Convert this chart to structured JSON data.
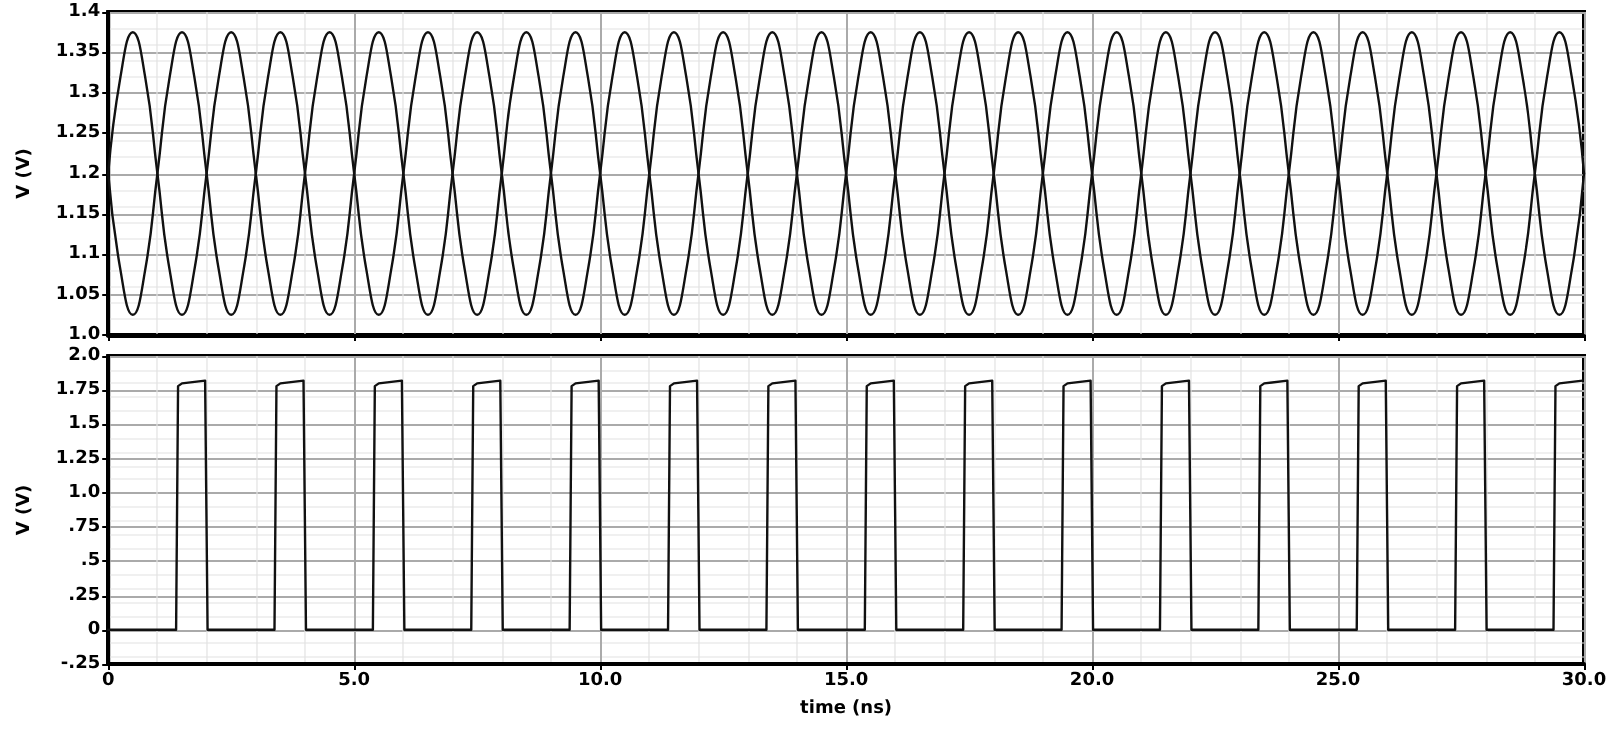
{
  "chart_data": [
    {
      "type": "line",
      "ylabel": "V (V)",
      "tick_labels": "y",
      "grid": true,
      "marker": "none",
      "line_style": "solid",
      "xlim": [
        0,
        30
      ],
      "xticks": [
        0,
        5,
        10,
        15,
        20,
        25,
        30
      ],
      "ylim": [
        1.0,
        1.4
      ],
      "yticks": [
        {
          "value": 1.0,
          "label": "1.0"
        },
        1.05,
        1.1,
        1.15,
        1.2,
        1.25,
        1.3,
        1.35,
        1.4
      ],
      "x": [
        0,
        0.25,
        0.5,
        0.75,
        1,
        1.25,
        1.5,
        1.75,
        2,
        2.25,
        2.5,
        2.75,
        3,
        3.25,
        3.5,
        3.75,
        4,
        4.25,
        4.5,
        4.75,
        5,
        5.25,
        5.5,
        5.75,
        6,
        6.25,
        6.5,
        6.75,
        7,
        7.25,
        7.5,
        7.75,
        8,
        8.25,
        8.5,
        8.75,
        9,
        9.25,
        9.5,
        9.75,
        10,
        10.25,
        10.5,
        10.75,
        11,
        11.25,
        11.5,
        11.75,
        12,
        12.25,
        12.5,
        12.75,
        13,
        13.25,
        13.5,
        13.75,
        14,
        14.25,
        14.5,
        14.75,
        15,
        15.25,
        15.5,
        15.75,
        16,
        16.25,
        16.5,
        16.75,
        17,
        17.25,
        17.5,
        17.75,
        18,
        18.25,
        18.5,
        18.75,
        19,
        19.25,
        19.5,
        19.75,
        20,
        20.25,
        20.5,
        20.75,
        21,
        21.25,
        21.5,
        21.75,
        22,
        22.25,
        22.5,
        22.75,
        23,
        23.25,
        23.5,
        23.75,
        24,
        24.25,
        24.5,
        24.75,
        25,
        25.25,
        25.5,
        25.75,
        26,
        26.25,
        26.5,
        26.75,
        27,
        27.25,
        27.5,
        27.75,
        28,
        28.25,
        28.5,
        28.75,
        29,
        29.25,
        29.5,
        29.75,
        30
      ],
      "series": [
        {
          "color": "#111111",
          "values": [
            1.2,
            1.32,
            1.375,
            1.32,
            1.2,
            1.08,
            1.025,
            1.08,
            1.2,
            1.32,
            1.375,
            1.32,
            1.2,
            1.08,
            1.025,
            1.08,
            1.2,
            1.32,
            1.375,
            1.32,
            1.2,
            1.08,
            1.025,
            1.08,
            1.2,
            1.32,
            1.375,
            1.32,
            1.2,
            1.08,
            1.025,
            1.08,
            1.2,
            1.32,
            1.375,
            1.32,
            1.2,
            1.08,
            1.025,
            1.08,
            1.2,
            1.32,
            1.375,
            1.32,
            1.2,
            1.08,
            1.025,
            1.08,
            1.2,
            1.32,
            1.375,
            1.32,
            1.2,
            1.08,
            1.025,
            1.08,
            1.2,
            1.32,
            1.375,
            1.32,
            1.2,
            1.08,
            1.025,
            1.08,
            1.2,
            1.32,
            1.375,
            1.32,
            1.2,
            1.08,
            1.025,
            1.08,
            1.2,
            1.32,
            1.375,
            1.32,
            1.2,
            1.08,
            1.025,
            1.08,
            1.2,
            1.32,
            1.375,
            1.32,
            1.2,
            1.08,
            1.025,
            1.08,
            1.2,
            1.32,
            1.375,
            1.32,
            1.2,
            1.08,
            1.025,
            1.08,
            1.2,
            1.32,
            1.375,
            1.32,
            1.2,
            1.08,
            1.025,
            1.08,
            1.2,
            1.32,
            1.375,
            1.32,
            1.2,
            1.08,
            1.025,
            1.08,
            1.2,
            1.32,
            1.375,
            1.32,
            1.2,
            1.08,
            1.025,
            1.08,
            1.2
          ]
        },
        {
          "color": "#111111",
          "values": [
            1.2,
            1.08,
            1.025,
            1.08,
            1.2,
            1.32,
            1.375,
            1.32,
            1.2,
            1.08,
            1.025,
            1.08,
            1.2,
            1.32,
            1.375,
            1.32,
            1.2,
            1.08,
            1.025,
            1.08,
            1.2,
            1.32,
            1.375,
            1.32,
            1.2,
            1.08,
            1.025,
            1.08,
            1.2,
            1.32,
            1.375,
            1.32,
            1.2,
            1.08,
            1.025,
            1.08,
            1.2,
            1.32,
            1.375,
            1.32,
            1.2,
            1.08,
            1.025,
            1.08,
            1.2,
            1.32,
            1.375,
            1.32,
            1.2,
            1.08,
            1.025,
            1.08,
            1.2,
            1.32,
            1.375,
            1.32,
            1.2,
            1.08,
            1.025,
            1.08,
            1.2,
            1.32,
            1.375,
            1.32,
            1.2,
            1.08,
            1.025,
            1.08,
            1.2,
            1.32,
            1.375,
            1.32,
            1.2,
            1.08,
            1.025,
            1.08,
            1.2,
            1.32,
            1.375,
            1.32,
            1.2,
            1.08,
            1.025,
            1.08,
            1.2,
            1.32,
            1.375,
            1.32,
            1.2,
            1.08,
            1.025,
            1.08,
            1.2,
            1.32,
            1.375,
            1.32,
            1.2,
            1.08,
            1.025,
            1.08,
            1.2,
            1.32,
            1.375,
            1.32,
            1.2,
            1.08,
            1.025,
            1.08,
            1.2,
            1.32,
            1.375,
            1.32,
            1.2,
            1.08,
            1.025,
            1.08,
            1.2,
            1.32,
            1.375,
            1.32,
            1.2
          ]
        }
      ]
    },
    {
      "type": "line",
      "xlabel": "time (ns)",
      "ylabel": "V (V)",
      "grid": true,
      "marker": "none",
      "line_style": "solid",
      "xlim": [
        0,
        30
      ],
      "xticks": [
        0,
        {
          "value": 5,
          "label": "5.0"
        },
        {
          "value": 10,
          "label": "10.0"
        },
        {
          "value": 15,
          "label": "15.0"
        },
        {
          "value": 20,
          "label": "20.0"
        },
        {
          "value": 25,
          "label": "25.0"
        },
        {
          "value": 30,
          "label": "30.0"
        }
      ],
      "ylim": [
        -0.25,
        2.0
      ],
      "yticks": [
        {
          "value": -0.25,
          "label": "-.25"
        },
        0,
        {
          "value": 0.25,
          "label": ".25"
        },
        {
          "value": 0.5,
          "label": ".5"
        },
        {
          "value": 0.75,
          "label": ".75"
        },
        {
          "value": 1.0,
          "label": "1.0"
        },
        1.25,
        1.5,
        1.75,
        {
          "value": 2.0,
          "label": "2.0"
        }
      ],
      "x": [
        0,
        1.38,
        1.42,
        1.5,
        1.97,
        2.02,
        3.38,
        3.42,
        3.5,
        3.97,
        4.02,
        5.38,
        5.42,
        5.5,
        5.97,
        6.02,
        7.38,
        7.42,
        7.5,
        7.97,
        8.02,
        9.38,
        9.42,
        9.5,
        9.97,
        10.02,
        11.38,
        11.42,
        11.5,
        11.97,
        12.02,
        13.38,
        13.42,
        13.5,
        13.97,
        14.02,
        15.38,
        15.42,
        15.5,
        15.97,
        16.02,
        17.38,
        17.42,
        17.5,
        17.97,
        18.02,
        19.38,
        19.42,
        19.5,
        19.97,
        20.02,
        21.38,
        21.42,
        21.5,
        21.97,
        22.02,
        23.38,
        23.42,
        23.5,
        23.97,
        24.02,
        25.38,
        25.42,
        25.5,
        25.97,
        26.02,
        27.38,
        27.42,
        27.5,
        27.97,
        28.02,
        29.38,
        29.42,
        29.5,
        29.97
      ],
      "series": [
        {
          "color": "#111111",
          "values": [
            0,
            0,
            1.78,
            1.8,
            1.82,
            0,
            0,
            1.78,
            1.8,
            1.82,
            0,
            0,
            1.78,
            1.8,
            1.82,
            0,
            0,
            1.78,
            1.8,
            1.82,
            0,
            0,
            1.78,
            1.8,
            1.82,
            0,
            0,
            1.78,
            1.8,
            1.82,
            0,
            0,
            1.78,
            1.8,
            1.82,
            0,
            0,
            1.78,
            1.8,
            1.82,
            0,
            0,
            1.78,
            1.8,
            1.82,
            0,
            0,
            1.78,
            1.8,
            1.82,
            0,
            0,
            1.78,
            1.8,
            1.82,
            0,
            0,
            1.78,
            1.8,
            1.82,
            0,
            0,
            1.78,
            1.8,
            1.82,
            0,
            0,
            1.78,
            1.8,
            1.82,
            0,
            0,
            1.78,
            1.8,
            1.82
          ]
        }
      ]
    }
  ]
}
